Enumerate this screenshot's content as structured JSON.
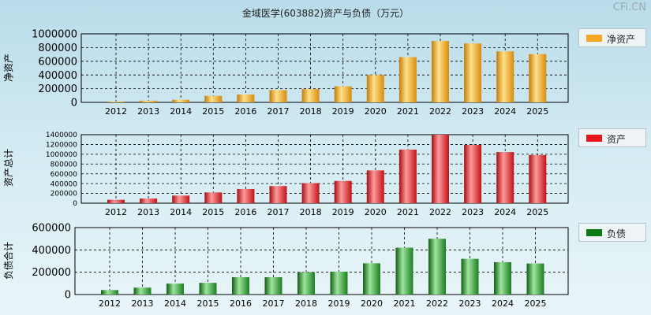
{
  "title": "金域医学(603882)资产与负债（万元）",
  "watermark": "CFi.CN",
  "chart_data": [
    {
      "type": "bar",
      "title": "净资产",
      "ylabel": "净资产",
      "legend": "净资产",
      "color": "#f5a623",
      "categories": [
        "2012",
        "2013",
        "2014",
        "2015",
        "2016",
        "2017",
        "2018",
        "2019",
        "2020",
        "2021",
        "2022",
        "2023",
        "2024",
        "2025"
      ],
      "values": [
        12000,
        25000,
        38000,
        95000,
        115000,
        180000,
        195000,
        235000,
        400000,
        660000,
        895000,
        860000,
        745000,
        705000
      ],
      "ylim": [
        0,
        1000000
      ],
      "yticks": [
        0,
        200000,
        400000,
        600000,
        800000,
        1000000
      ]
    },
    {
      "type": "bar",
      "title": "资产",
      "ylabel": "资产总计",
      "legend": "资产",
      "color": "#e8161b",
      "categories": [
        "2012",
        "2013",
        "2014",
        "2015",
        "2016",
        "2017",
        "2018",
        "2019",
        "2020",
        "2021",
        "2022",
        "2023",
        "2024",
        "2025"
      ],
      "values": [
        70000,
        95000,
        155000,
        220000,
        290000,
        350000,
        410000,
        455000,
        670000,
        1095000,
        1400000,
        1190000,
        1045000,
        985000
      ],
      "ylim": [
        0,
        1400000
      ],
      "yticks": [
        0,
        200000,
        400000,
        600000,
        800000,
        1000000,
        1200000,
        1400000
      ]
    },
    {
      "type": "bar",
      "title": "负债",
      "ylabel": "负债合计",
      "legend": "负债",
      "color": "#1a8a1f",
      "categories": [
        "2012",
        "2013",
        "2014",
        "2015",
        "2016",
        "2017",
        "2018",
        "2019",
        "2020",
        "2021",
        "2022",
        "2023",
        "2024",
        "2025"
      ],
      "values": [
        40000,
        62000,
        98000,
        105000,
        155000,
        155000,
        200000,
        205000,
        280000,
        420000,
        500000,
        320000,
        290000,
        278000
      ],
      "ylim": [
        0,
        600000
      ],
      "yticks": [
        0,
        200000,
        400000,
        600000
      ]
    }
  ]
}
